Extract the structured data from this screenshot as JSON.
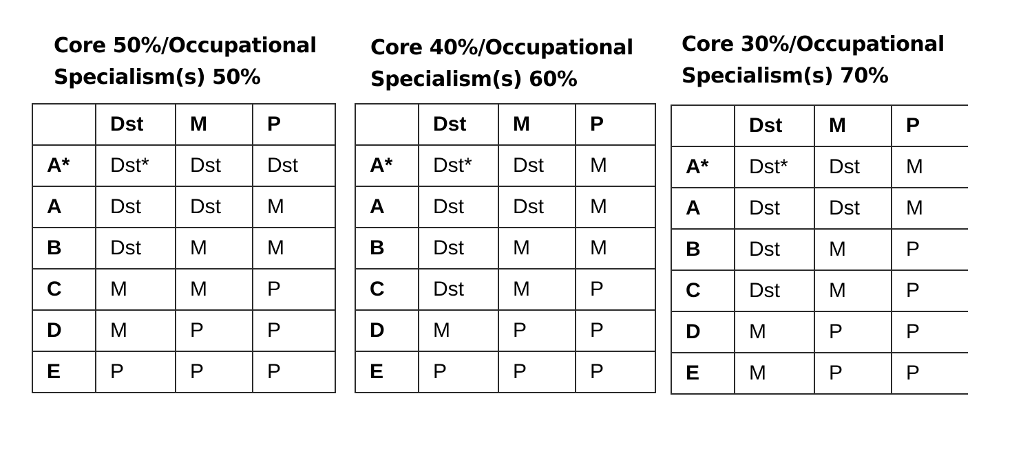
{
  "tables": [
    {
      "title_line1": "Core 50%/Occupational",
      "title_line2": "Specialism(s) 50%",
      "columns": [
        "",
        "Dst",
        "M",
        "P"
      ],
      "rows": [
        {
          "grade": "A*",
          "cells": [
            "Dst*",
            "Dst",
            "Dst"
          ]
        },
        {
          "grade": "A",
          "cells": [
            "Dst",
            "Dst",
            "M"
          ]
        },
        {
          "grade": "B",
          "cells": [
            "Dst",
            "M",
            "M"
          ]
        },
        {
          "grade": "C",
          "cells": [
            "M",
            "M",
            "P"
          ]
        },
        {
          "grade": "D",
          "cells": [
            "M",
            "P",
            "P"
          ]
        },
        {
          "grade": "E",
          "cells": [
            "P",
            "P",
            "P"
          ]
        }
      ]
    },
    {
      "title_line1": "Core 40%/Occupational",
      "title_line2": "Specialism(s) 60%",
      "columns": [
        "",
        "Dst",
        "M",
        "P"
      ],
      "rows": [
        {
          "grade": "A*",
          "cells": [
            "Dst*",
            "Dst",
            "M"
          ]
        },
        {
          "grade": "A",
          "cells": [
            "Dst",
            "Dst",
            "M"
          ]
        },
        {
          "grade": "B",
          "cells": [
            "Dst",
            "M",
            "M"
          ]
        },
        {
          "grade": "C",
          "cells": [
            "Dst",
            "M",
            "P"
          ]
        },
        {
          "grade": "D",
          "cells": [
            "M",
            "P",
            "P"
          ]
        },
        {
          "grade": "E",
          "cells": [
            "P",
            "P",
            "P"
          ]
        }
      ]
    },
    {
      "title_line1": "Core 30%/Occupational",
      "title_line2": "Specialism(s) 70%",
      "columns": [
        "",
        "Dst",
        "M",
        "P"
      ],
      "rows": [
        {
          "grade": "A*",
          "cells": [
            "Dst*",
            "Dst",
            "M"
          ]
        },
        {
          "grade": "A",
          "cells": [
            "Dst",
            "Dst",
            "M"
          ]
        },
        {
          "grade": "B",
          "cells": [
            "Dst",
            "M",
            "P"
          ]
        },
        {
          "grade": "C",
          "cells": [
            "Dst",
            "M",
            "P"
          ]
        },
        {
          "grade": "D",
          "cells": [
            "M",
            "P",
            "P"
          ]
        },
        {
          "grade": "E",
          "cells": [
            "M",
            "P",
            "P"
          ]
        }
      ]
    }
  ]
}
